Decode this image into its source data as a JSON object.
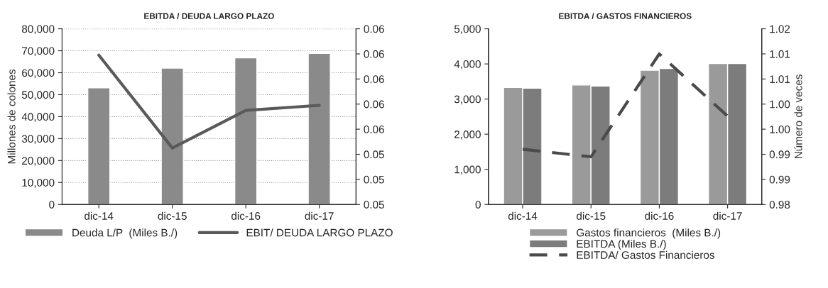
{
  "chart_data": [
    {
      "type": "bar",
      "title": "EBITDA / DEUDA LARGO PLAZO",
      "ylabel": "Millones de colones",
      "categories": [
        "dic-14",
        "dic-15",
        "dic-16",
        "dic-17"
      ],
      "series": [
        {
          "name": "Deuda L/P  (Miles B./)",
          "color": "#8a8a8a",
          "values": [
            53100,
            62100,
            66800,
            68800
          ]
        },
        {
          "name": "EBIT/ DEUDA LARGO PLAZO",
          "type": "line",
          "axis": "y2",
          "color": "#5a5a5a",
          "values": [
            0.0619,
            0.0545,
            0.0575,
            0.0579
          ]
        }
      ],
      "ylim": [
        0,
        80000
      ],
      "yticks": [
        {
          "value": 0,
          "label": "0"
        },
        {
          "value": 10000,
          "label": "10,000"
        },
        {
          "value": 20000,
          "label": "20,000"
        },
        {
          "value": 30000,
          "label": "30,000"
        },
        {
          "value": 40000,
          "label": "40,000"
        },
        {
          "value": 50000,
          "label": "50,000"
        },
        {
          "value": 60000,
          "label": "60,000"
        },
        {
          "value": 70000,
          "label": "70,000"
        },
        {
          "value": 80000,
          "label": "80,000"
        }
      ],
      "y2lim": [
        0.05,
        0.064
      ],
      "y2ticks": [
        {
          "value": 0.05,
          "label": "0.05"
        },
        {
          "value": 0.052,
          "label": "0.05"
        },
        {
          "value": 0.054,
          "label": "0.05"
        },
        {
          "value": 0.056,
          "label": "0.06"
        },
        {
          "value": 0.058,
          "label": "0.06"
        },
        {
          "value": 0.06,
          "label": "0.06"
        },
        {
          "value": 0.062,
          "label": "0.06"
        },
        {
          "value": 0.064,
          "label": "0.06"
        }
      ],
      "grid": "y",
      "legend": "bottom",
      "line_style": "solid"
    },
    {
      "type": "bar",
      "title": "EBITDA / GASTOS FINANCIEROS",
      "y2label": "Número de veces",
      "categories": [
        "dic-14",
        "dic-15",
        "dic-16",
        "dic-17"
      ],
      "series": [
        {
          "name": "Gastos financieros  (Miles B./)",
          "color": "#9a9a9a",
          "values": [
            3330,
            3400,
            3820,
            4010
          ]
        },
        {
          "name": "EBITDA (Miles B./)",
          "color": "#7c7c7c",
          "values": [
            3310,
            3370,
            3870,
            4010
          ]
        },
        {
          "name": "EBITDA/ Gastos Financieros",
          "type": "line",
          "axis": "y2",
          "color": "#4a4a4a",
          "values": [
            0.996,
            0.9945,
            1.015,
            1.0026
          ]
        }
      ],
      "ylim": [
        0,
        5000
      ],
      "yticks": [
        {
          "value": 0,
          "label": "0"
        },
        {
          "value": 1000,
          "label": "1,000"
        },
        {
          "value": 2000,
          "label": "2,000"
        },
        {
          "value": 3000,
          "label": "3,000"
        },
        {
          "value": 4000,
          "label": "4,000"
        },
        {
          "value": 5000,
          "label": "5,000"
        }
      ],
      "y2lim": [
        0.985,
        1.02
      ],
      "y2ticks": [
        {
          "value": 0.985,
          "label": "0.98"
        },
        {
          "value": 0.99,
          "label": "0.99"
        },
        {
          "value": 0.995,
          "label": "0.99"
        },
        {
          "value": 1.0,
          "label": "1.00"
        },
        {
          "value": 1.005,
          "label": "1.00"
        },
        {
          "value": 1.01,
          "label": "1.01"
        },
        {
          "value": 1.015,
          "label": "1.01"
        },
        {
          "value": 1.02,
          "label": "1.02"
        }
      ],
      "grid": false,
      "legend": "bottom",
      "line_style": "dashed"
    }
  ]
}
